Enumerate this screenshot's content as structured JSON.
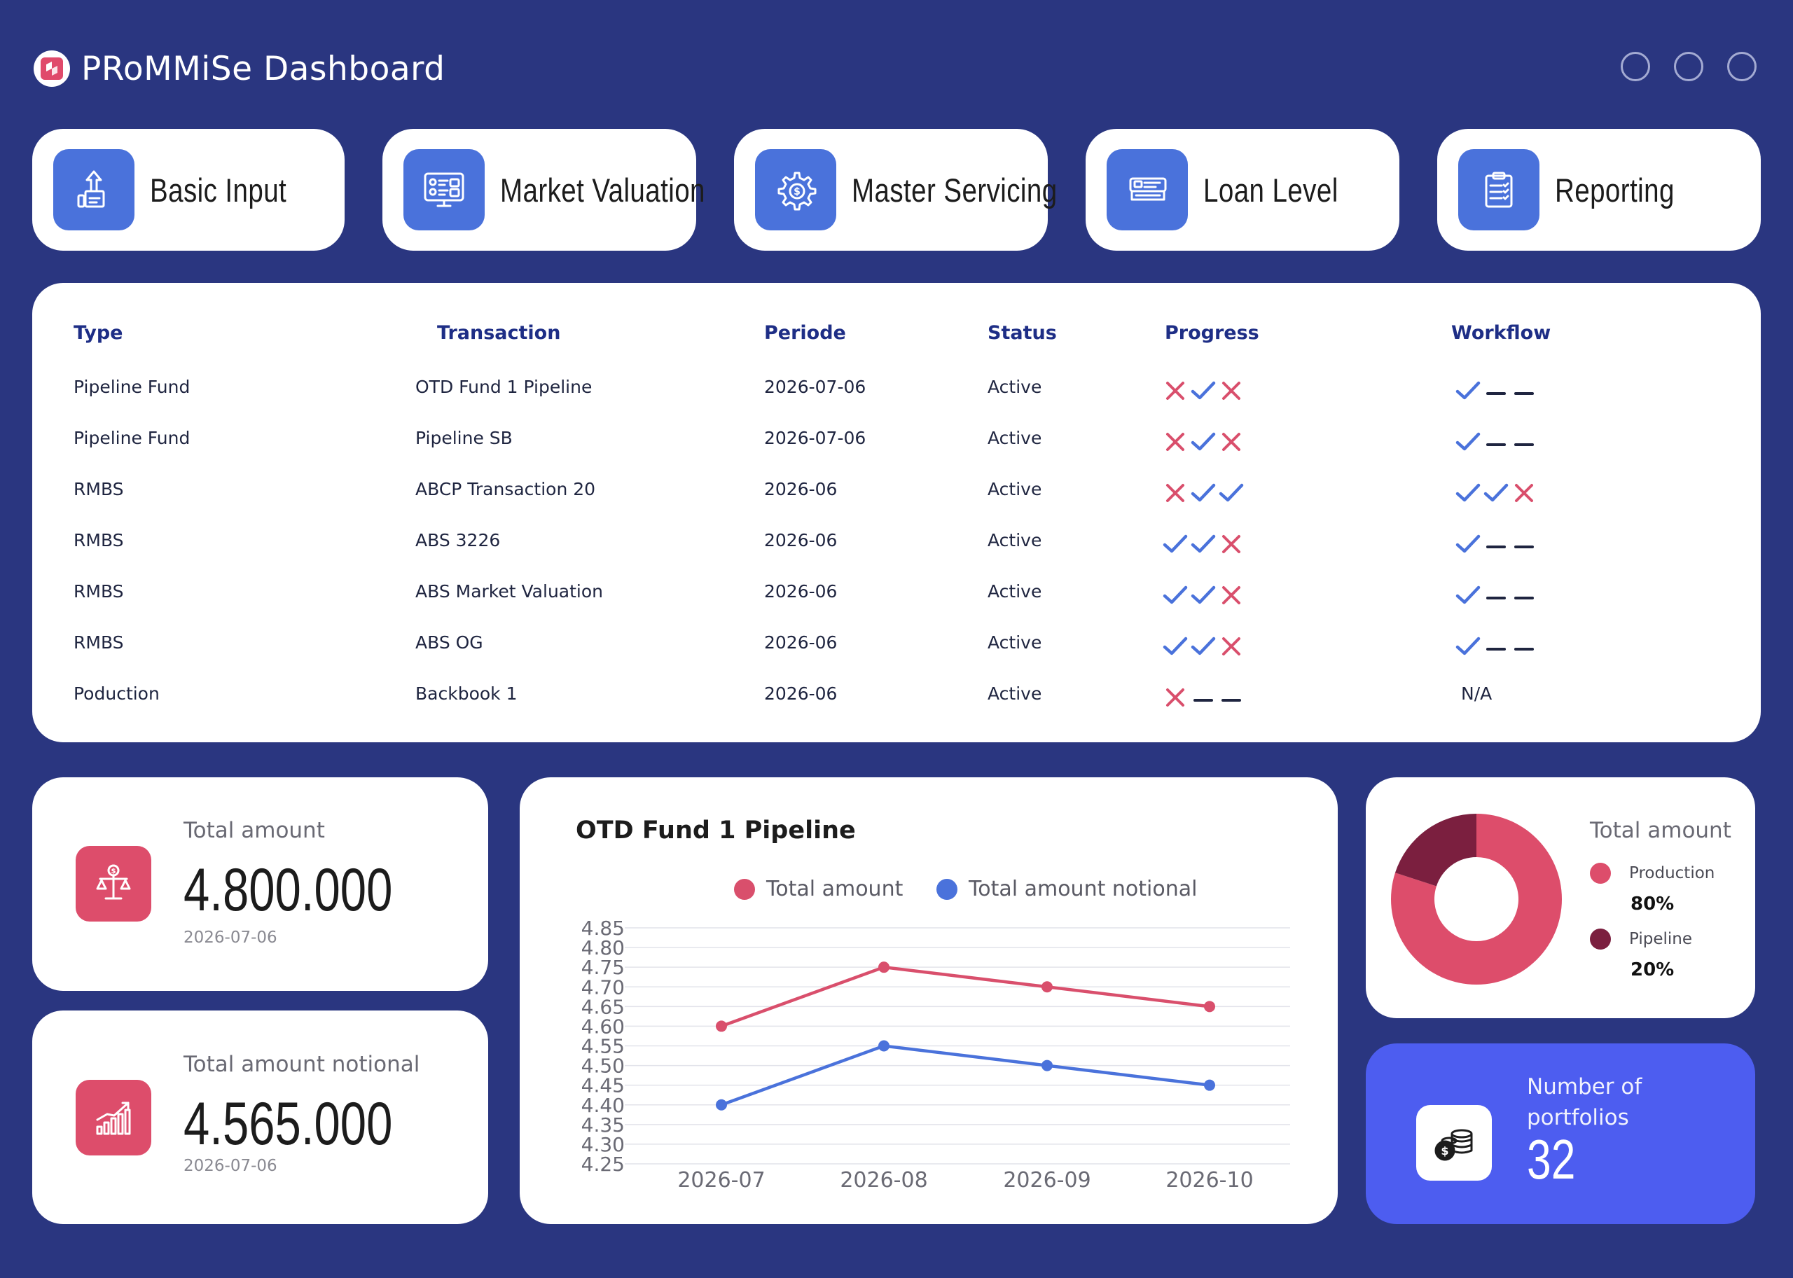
{
  "app": {
    "title": "PRoMMiSe Dashboard"
  },
  "nav": [
    {
      "label": "Basic Input",
      "icon": "upload-box-icon"
    },
    {
      "label": "Market Valuation",
      "icon": "dashboard-screen-icon"
    },
    {
      "label": "Master Servicing",
      "icon": "gear-dollar-icon"
    },
    {
      "label": "Loan Level",
      "icon": "id-card-icon"
    },
    {
      "label": "Reporting",
      "icon": "clipboard-check-icon"
    }
  ],
  "table": {
    "headers": {
      "type": "Type",
      "transaction": "Transaction",
      "periode": "Periode",
      "status": "Status",
      "progress": "Progress",
      "workflow": "Workflow"
    },
    "rows": [
      {
        "type": "Pipeline Fund",
        "transaction": "OTD Fund 1 Pipeline",
        "periode": "2026-07-06",
        "status": "Active",
        "progress": [
          "x",
          "check",
          "x"
        ],
        "workflow": [
          "check",
          "dash",
          "dash"
        ]
      },
      {
        "type": "Pipeline Fund",
        "transaction": "Pipeline SB",
        "periode": "2026-07-06",
        "status": "Active",
        "progress": [
          "x",
          "check",
          "x"
        ],
        "workflow": [
          "check",
          "dash",
          "dash"
        ]
      },
      {
        "type": "RMBS",
        "transaction": "ABCP Transaction 20",
        "periode": "2026-06",
        "status": "Active",
        "progress": [
          "x",
          "check",
          "check"
        ],
        "workflow": [
          "check",
          "check",
          "x"
        ]
      },
      {
        "type": "RMBS",
        "transaction": "ABS 3226",
        "periode": "2026-06",
        "status": "Active",
        "progress": [
          "check",
          "check",
          "x"
        ],
        "workflow": [
          "check",
          "dash",
          "dash"
        ]
      },
      {
        "type": "RMBS",
        "transaction": "ABS Market Valuation",
        "periode": "2026-06",
        "status": "Active",
        "progress": [
          "check",
          "check",
          "x"
        ],
        "workflow": [
          "check",
          "dash",
          "dash"
        ]
      },
      {
        "type": "RMBS",
        "transaction": "ABS OG",
        "periode": "2026-06",
        "status": "Active",
        "progress": [
          "check",
          "check",
          "x"
        ],
        "workflow": [
          "check",
          "dash",
          "dash"
        ]
      },
      {
        "type": "Poduction",
        "transaction": "Backbook 1",
        "periode": "2026-06",
        "status": "Active",
        "progress": [
          "x",
          "dash",
          "dash"
        ],
        "workflow_text": "N/A"
      }
    ]
  },
  "kpis": {
    "total": {
      "label": "Total amount",
      "value": "4.800.000",
      "date": "2026-07-06",
      "icon": "scale-dollar-icon"
    },
    "notional": {
      "label": "Total amount notional",
      "value": "4.565.000",
      "date": "2026-07-06",
      "icon": "growth-chart-icon"
    }
  },
  "chart_data": {
    "type": "line",
    "title": "OTD Fund 1 Pipeline",
    "categories": [
      "2026-07",
      "2026-08",
      "2026-09",
      "2026-10"
    ],
    "series": [
      {
        "name": "Total amount",
        "color": "#d94f6c",
        "values": [
          4.6,
          4.75,
          4.7,
          4.65
        ]
      },
      {
        "name": "Total amount notional",
        "color": "#4a72db",
        "values": [
          4.4,
          4.55,
          4.5,
          4.45
        ]
      }
    ],
    "ylim": [
      4.25,
      4.85
    ],
    "yticks": [
      "4.85",
      "4.80",
      "4.75",
      "4.70",
      "4.65",
      "4.60",
      "4.55",
      "4.50",
      "4.45",
      "4.40",
      "4.35",
      "4.30",
      "4.25"
    ],
    "grid": true,
    "legend": "top"
  },
  "donut": {
    "label": "Total amount",
    "segments": [
      {
        "name": "Production",
        "value": "80%",
        "fraction": 0.8,
        "color": "#dd4d6b"
      },
      {
        "name": "Pipeline",
        "value": "20%",
        "fraction": 0.2,
        "color": "#7b1f3f"
      }
    ]
  },
  "portfolios": {
    "label": "Number of portfolios",
    "value": "32",
    "icon": "coins-dollar-icon"
  },
  "colors": {
    "background": "#2a3680",
    "accent": "#4a72db",
    "pink": "#dd4d6b",
    "purple": "#4d5df0"
  }
}
